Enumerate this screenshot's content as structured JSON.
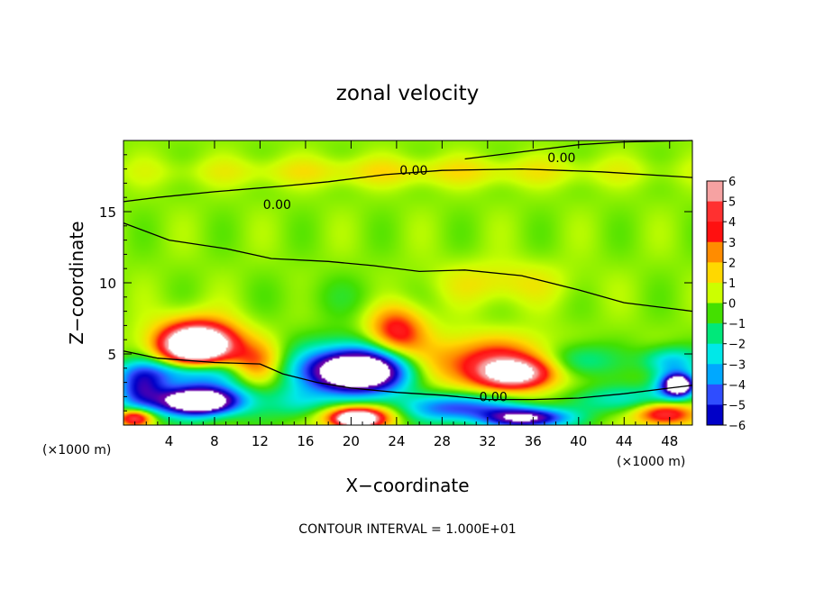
{
  "chart_data": {
    "type": "heatmap",
    "title": "zonal velocity",
    "xlabel": "X−coordinate",
    "ylabel": "Z−coordinate",
    "x_unit_left": "(×1000 m)",
    "x_unit_right": "(×1000 m)",
    "footer": "CONTOUR INTERVAL = 1.000E+01",
    "xlim": [
      0,
      50
    ],
    "ylim": [
      0,
      20
    ],
    "x_ticks": [
      4,
      8,
      12,
      16,
      20,
      24,
      28,
      32,
      36,
      40,
      44,
      48
    ],
    "x_tick_labels": [
      "4",
      "8",
      "12",
      "16",
      "20",
      "24",
      "28",
      "32",
      "36",
      "40",
      "44",
      "48"
    ],
    "y_ticks": [
      5,
      10,
      15
    ],
    "y_tick_labels": [
      "5",
      "10",
      "15"
    ],
    "colorbar": {
      "min": -6,
      "max": 6,
      "levels": [
        6,
        5,
        4,
        3,
        2,
        1,
        0,
        -1,
        -2,
        -3,
        -4,
        -5,
        -6
      ],
      "labels": [
        "6",
        "5",
        "4",
        "3",
        "2",
        "1",
        "0",
        "−1",
        "−2",
        "−3",
        "−4",
        "−5",
        "−6"
      ],
      "colors": [
        "#f6a2a2",
        "#ff3030",
        "#ff1010",
        "#ff8c00",
        "#ffd800",
        "#ccff00",
        "#44e000",
        "#00e87a",
        "#00e8e8",
        "#00a8ff",
        "#2f4dff",
        "#0000c8",
        "#6600aa"
      ]
    },
    "contour_label": "0.00",
    "background_value": 0.5,
    "features": [
      {
        "x": 6.5,
        "z": 5.8,
        "rx": 3.6,
        "rz": 1.7,
        "value": 5.6
      },
      {
        "x": 6.5,
        "z": 5.6,
        "rx": 2.6,
        "rz": 1.1,
        "value": 7.5
      },
      {
        "x": 5.0,
        "z": 3.8,
        "rx": 5.5,
        "rz": 0.9,
        "value": -3.0
      },
      {
        "x": 1.5,
        "z": 2.5,
        "rx": 2.2,
        "rz": 1.6,
        "value": -4.6
      },
      {
        "x": 7.0,
        "z": 2.0,
        "rx": 4.5,
        "rz": 1.4,
        "value": -4.8
      },
      {
        "x": 6.5,
        "z": 1.6,
        "rx": 3.0,
        "rz": 0.8,
        "value": -7.5
      },
      {
        "x": 1.0,
        "z": 0.5,
        "rx": 1.5,
        "rz": 0.6,
        "value": 5.5
      },
      {
        "x": 11.5,
        "z": 4.2,
        "rx": 2.3,
        "rz": 1.6,
        "value": 3.0
      },
      {
        "x": 20.5,
        "z": 3.8,
        "rx": 5.2,
        "rz": 2.0,
        "value": -5.0
      },
      {
        "x": 20.5,
        "z": 3.8,
        "rx": 3.8,
        "rz": 1.3,
        "value": -7.5
      },
      {
        "x": 20.5,
        "z": 0.6,
        "rx": 3.0,
        "rz": 0.8,
        "value": 5.5
      },
      {
        "x": 20.5,
        "z": 0.4,
        "rx": 1.6,
        "rz": 0.5,
        "value": 7.5
      },
      {
        "x": 15.5,
        "z": 1.5,
        "rx": 2.5,
        "rz": 1.2,
        "value": -1.8
      },
      {
        "x": 24.0,
        "z": 6.5,
        "rx": 2.5,
        "rz": 1.8,
        "value": 4.2
      },
      {
        "x": 32.0,
        "z": 4.3,
        "rx": 6.5,
        "rz": 1.8,
        "value": 4.0
      },
      {
        "x": 34.5,
        "z": 3.6,
        "rx": 3.0,
        "rz": 1.0,
        "value": 5.5
      },
      {
        "x": 29.5,
        "z": 1.2,
        "rx": 4.5,
        "rz": 1.0,
        "value": -4.8
      },
      {
        "x": 35.5,
        "z": 0.5,
        "rx": 3.5,
        "rz": 0.7,
        "value": -7.5
      },
      {
        "x": 40.0,
        "z": 4.5,
        "rx": 3.0,
        "rz": 1.3,
        "value": -2.6
      },
      {
        "x": 44.0,
        "z": 1.8,
        "rx": 4.5,
        "rz": 1.0,
        "value": -2.3
      },
      {
        "x": 47.5,
        "z": 0.8,
        "rx": 2.5,
        "rz": 0.8,
        "value": 5.0
      },
      {
        "x": 48.5,
        "z": 2.8,
        "rx": 1.8,
        "rz": 1.0,
        "value": -5.2
      },
      {
        "x": 48.8,
        "z": 2.8,
        "rx": 1.0,
        "rz": 0.6,
        "value": -7.5
      },
      {
        "x": 48.0,
        "z": 4.5,
        "rx": 2.5,
        "rz": 1.0,
        "value": -3.0
      },
      {
        "x": 25.0,
        "z": 17.8,
        "rx": 22.0,
        "rz": 1.0,
        "value": 1.2
      },
      {
        "x": 33.0,
        "z": 10.0,
        "rx": 6.0,
        "rz": 1.5,
        "value": 1.2
      },
      {
        "x": 20.0,
        "z": 9.0,
        "rx": 6.0,
        "rz": 1.5,
        "value": -0.5
      }
    ],
    "contours": [
      {
        "points": [
          [
            0,
            15.7
          ],
          [
            3,
            16.0
          ],
          [
            8,
            16.4
          ],
          [
            14,
            16.8
          ],
          [
            18,
            17.1
          ],
          [
            23,
            17.6
          ],
          [
            28,
            17.9
          ],
          [
            35,
            18.0
          ],
          [
            42,
            17.8
          ],
          [
            48,
            17.5
          ],
          [
            50,
            17.4
          ]
        ],
        "label": "0.00",
        "label_x": 25.5,
        "label_z": 17.9
      },
      {
        "points": [
          [
            30,
            18.7
          ],
          [
            35,
            19.2
          ],
          [
            40,
            19.7
          ],
          [
            44,
            19.9
          ],
          [
            50,
            20.0
          ]
        ],
        "label": "0.00",
        "label_x": 38.5,
        "label_z": 18.8
      },
      {
        "points": [
          [
            0,
            14.2
          ],
          [
            4,
            13.0
          ],
          [
            9,
            12.4
          ],
          [
            13,
            11.7
          ],
          [
            18,
            11.5
          ],
          [
            22,
            11.2
          ],
          [
            26,
            10.8
          ],
          [
            30,
            10.9
          ],
          [
            35,
            10.5
          ],
          [
            40,
            9.5
          ],
          [
            44,
            8.6
          ],
          [
            48,
            8.2
          ],
          [
            50,
            8.0
          ]
        ],
        "label": "0.00",
        "label_x": 13.5,
        "label_z": 15.5
      },
      {
        "points": [
          [
            0,
            5.2
          ],
          [
            3,
            4.7
          ],
          [
            8,
            4.4
          ],
          [
            12,
            4.3
          ],
          [
            14,
            3.6
          ],
          [
            17,
            3.0
          ],
          [
            20,
            2.6
          ],
          [
            24,
            2.3
          ],
          [
            28,
            2.1
          ],
          [
            32,
            1.8
          ],
          [
            36,
            1.8
          ],
          [
            40,
            1.9
          ],
          [
            44,
            2.2
          ],
          [
            48,
            2.6
          ],
          [
            50,
            2.8
          ]
        ],
        "label": "0.00",
        "label_x": 32.5,
        "label_z": 2.0
      }
    ]
  }
}
